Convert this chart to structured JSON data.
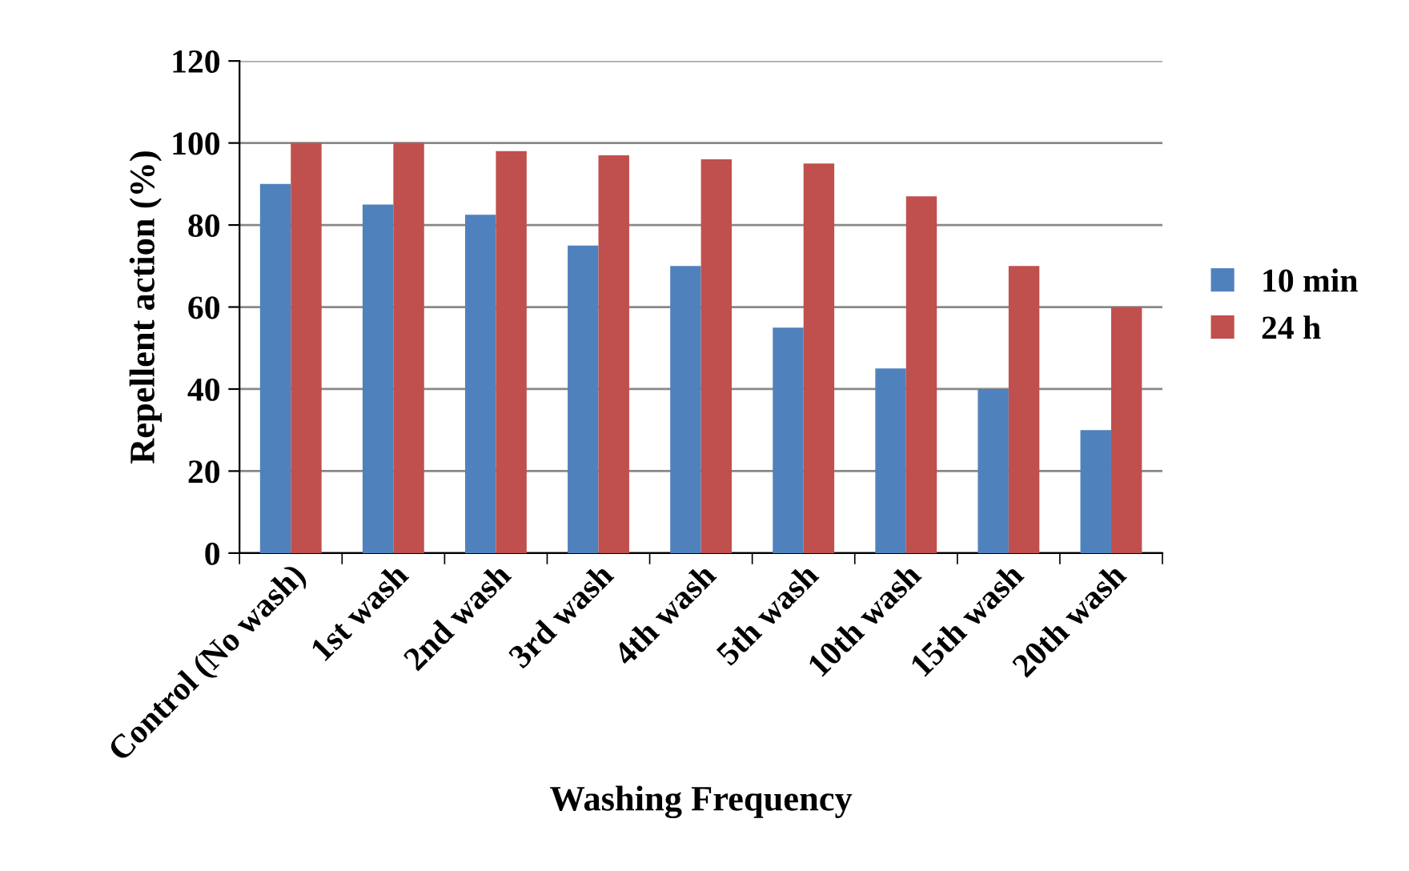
{
  "chart_data": {
    "type": "bar",
    "xlabel": "Washing Frequency",
    "ylabel": "Repellent action (%)",
    "categories": [
      "Control (No wash)",
      "1st wash",
      "2nd wash",
      "3rd wash",
      "4th wash",
      "5th wash",
      "10th wash",
      "15th wash",
      "20th wash"
    ],
    "series": [
      {
        "name": "10 min",
        "color": "#4f81bd",
        "values": [
          90,
          85,
          82.5,
          75,
          70,
          55,
          45,
          40,
          30
        ]
      },
      {
        "name": "24 h",
        "color": "#c0504d",
        "values": [
          100,
          100,
          98,
          97,
          96,
          95,
          87,
          70,
          60
        ]
      }
    ],
    "ylim": [
      0,
      120
    ],
    "yticks": [
      0,
      20,
      40,
      60,
      80,
      100,
      120
    ],
    "grid": "y",
    "legend": "right"
  }
}
